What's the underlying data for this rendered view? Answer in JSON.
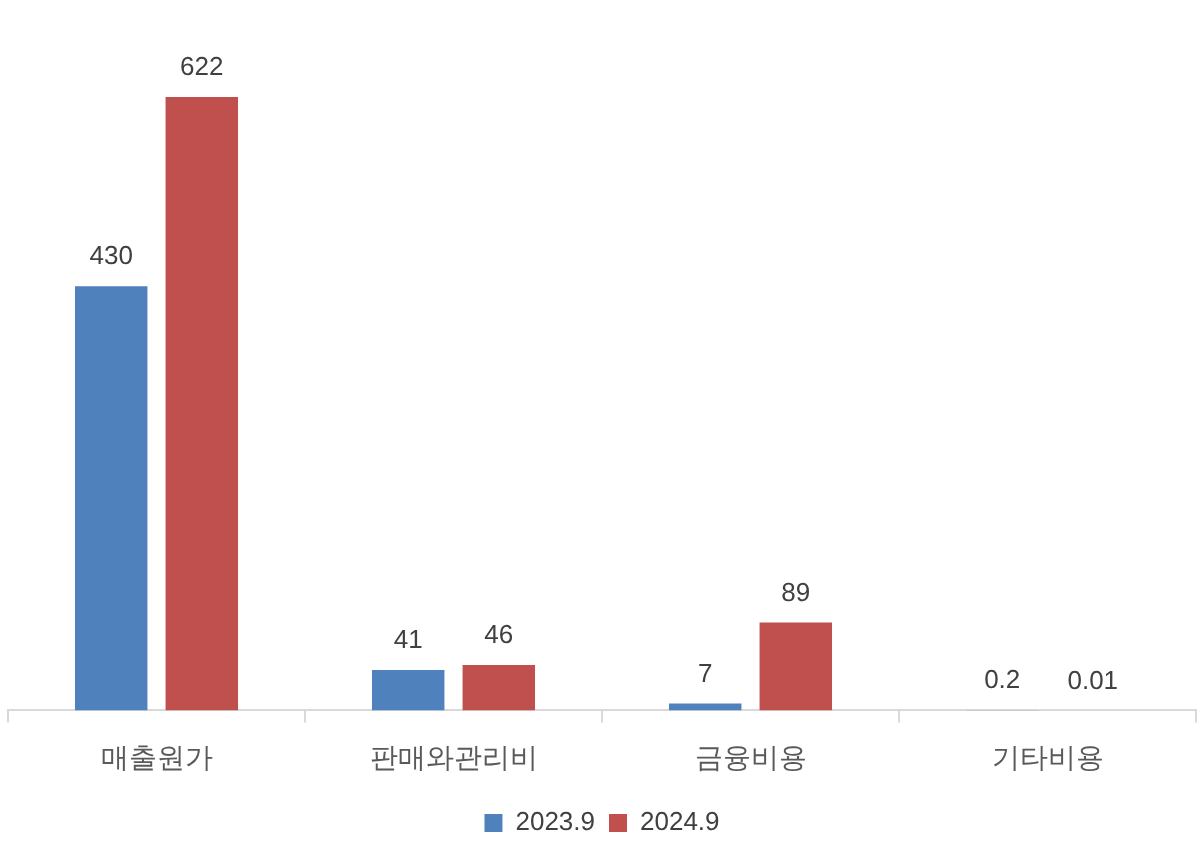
{
  "chart_data": {
    "type": "bar",
    "categories": [
      "매출원가",
      "판매와관리비",
      "금융비용",
      "기타비용"
    ],
    "series": [
      {
        "name": "2023.9",
        "color": "#4f81bd",
        "values": [
          430,
          41,
          7,
          0.2
        ]
      },
      {
        "name": "2024.9",
        "color": "#c0504d",
        "values": [
          622,
          46,
          89,
          0.01
        ]
      }
    ],
    "data_labels": true,
    "legend": "bottom",
    "grid": false,
    "tick_labels": "x"
  }
}
